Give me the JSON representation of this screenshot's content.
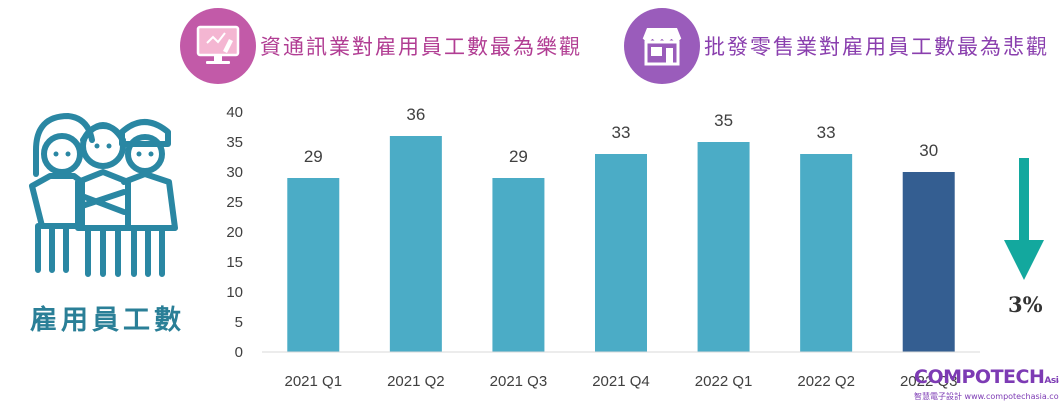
{
  "legend": [
    {
      "label": "資通訊業對雇用員工數最為樂觀",
      "icon": "computer-icon",
      "color": "#c25aa8"
    },
    {
      "label": "批發零售業對雇用員工數最為悲觀",
      "icon": "storefront-icon",
      "color": "#9a5cbb"
    }
  ],
  "metric_label": "雇用員工數",
  "change": {
    "value": "3%",
    "direction": "down",
    "arrow_color": "#13a89e"
  },
  "watermark": {
    "main": "COMPOTECH",
    "suffix": "Asia",
    "sub": "智慧電子設計 www.compotechasia.com"
  },
  "chart_data": {
    "type": "bar",
    "title": "",
    "xlabel": "",
    "ylabel": "",
    "categories": [
      "2021 Q1",
      "2021 Q2",
      "2021 Q3",
      "2021 Q4",
      "2022 Q1",
      "2022 Q2",
      "2022 Q3"
    ],
    "values": [
      29,
      36,
      29,
      33,
      35,
      33,
      30
    ],
    "data_labels": [
      "29",
      "36",
      "29",
      "33",
      "35",
      "33",
      "30"
    ],
    "yticks": [
      "0",
      "5",
      "10",
      "15",
      "20",
      "25",
      "30",
      "35",
      "40"
    ],
    "ylim": [
      0,
      40
    ],
    "colors": [
      "#4bacc6",
      "#4bacc6",
      "#4bacc6",
      "#4bacc6",
      "#4bacc6",
      "#4bacc6",
      "#345e91"
    ],
    "grid": false,
    "legend": "none"
  }
}
